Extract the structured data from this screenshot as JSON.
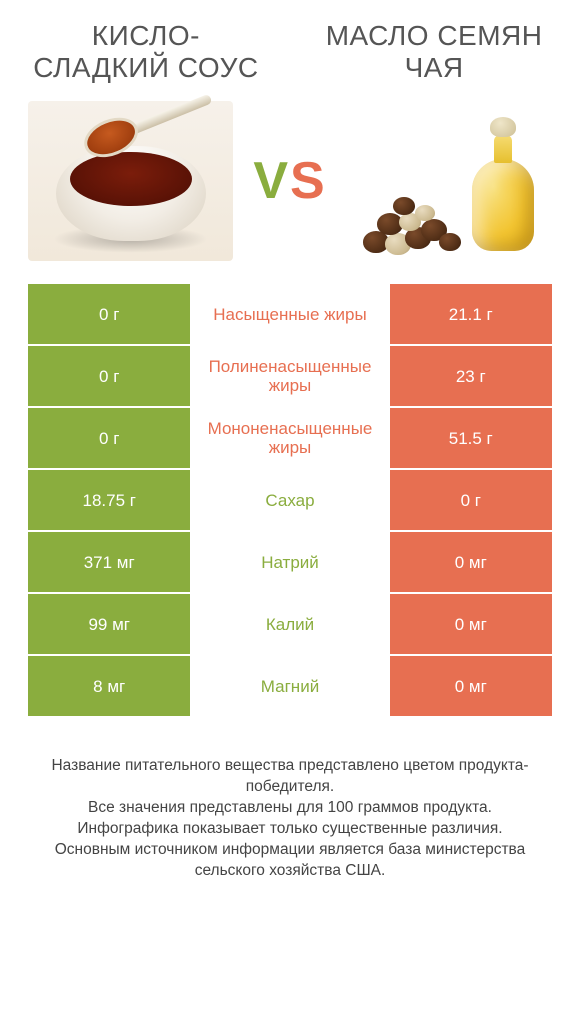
{
  "colors": {
    "left": "#8aad3e",
    "right": "#e76f51",
    "text": "#555555"
  },
  "products": {
    "left": {
      "title": "КИСЛО-СЛАДКИЙ СОУС"
    },
    "right": {
      "title": "МАСЛО СЕМЯН ЧАЯ"
    }
  },
  "vs": "VS",
  "rows": [
    {
      "label": "Насыщенные жиры",
      "left": "0 г",
      "right": "21.1 г",
      "winner": "right"
    },
    {
      "label": "Полиненасыщенные жиры",
      "left": "0 г",
      "right": "23 г",
      "winner": "right"
    },
    {
      "label": "Мононенасыщенные жиры",
      "left": "0 г",
      "right": "51.5 г",
      "winner": "right"
    },
    {
      "label": "Сахар",
      "left": "18.75 г",
      "right": "0 г",
      "winner": "left"
    },
    {
      "label": "Натрий",
      "left": "371 мг",
      "right": "0 мг",
      "winner": "left"
    },
    {
      "label": "Калий",
      "left": "99 мг",
      "right": "0 мг",
      "winner": "left"
    },
    {
      "label": "Магний",
      "left": "8 мг",
      "right": "0 мг",
      "winner": "left"
    }
  ],
  "footnote": "Название питательного вещества представлено цветом продукта-победителя.\nВсе значения представлены для 100 граммов продукта.\nИнфографика показывает только существенные различия.\nОсновным источником информации является база министерства сельского хозяйства США."
}
